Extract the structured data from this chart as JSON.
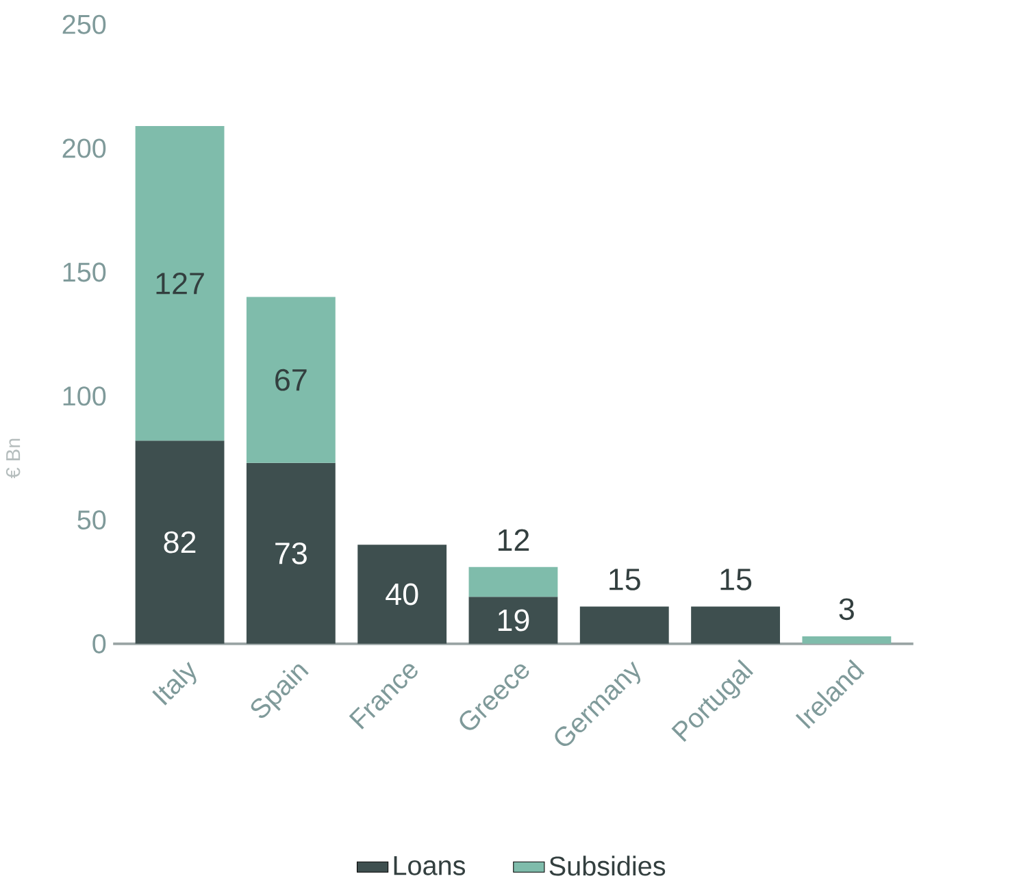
{
  "chart_data": {
    "type": "bar",
    "stacked": true,
    "ylabel": "€ Bn",
    "categories": [
      "Italy",
      "Spain",
      "France",
      "Greece",
      "Germany",
      "Portugal",
      "Ireland"
    ],
    "series": [
      {
        "name": "Loans",
        "color": "#3e4f4f",
        "values": [
          82,
          73,
          40,
          19,
          15,
          15,
          null
        ],
        "value_labels": [
          "82",
          "73",
          "40",
          "19",
          "15",
          "15",
          null
        ]
      },
      {
        "name": "Subsidies",
        "color": "#7fbcab",
        "values": [
          127,
          67,
          null,
          12,
          null,
          null,
          3
        ],
        "value_labels": [
          "127",
          "67",
          null,
          "12",
          null,
          null,
          "3"
        ]
      }
    ],
    "ylim": [
      0,
      250
    ],
    "yticks": [
      0,
      50,
      100,
      150,
      200,
      250
    ],
    "grid": false,
    "legend": "bottom"
  }
}
